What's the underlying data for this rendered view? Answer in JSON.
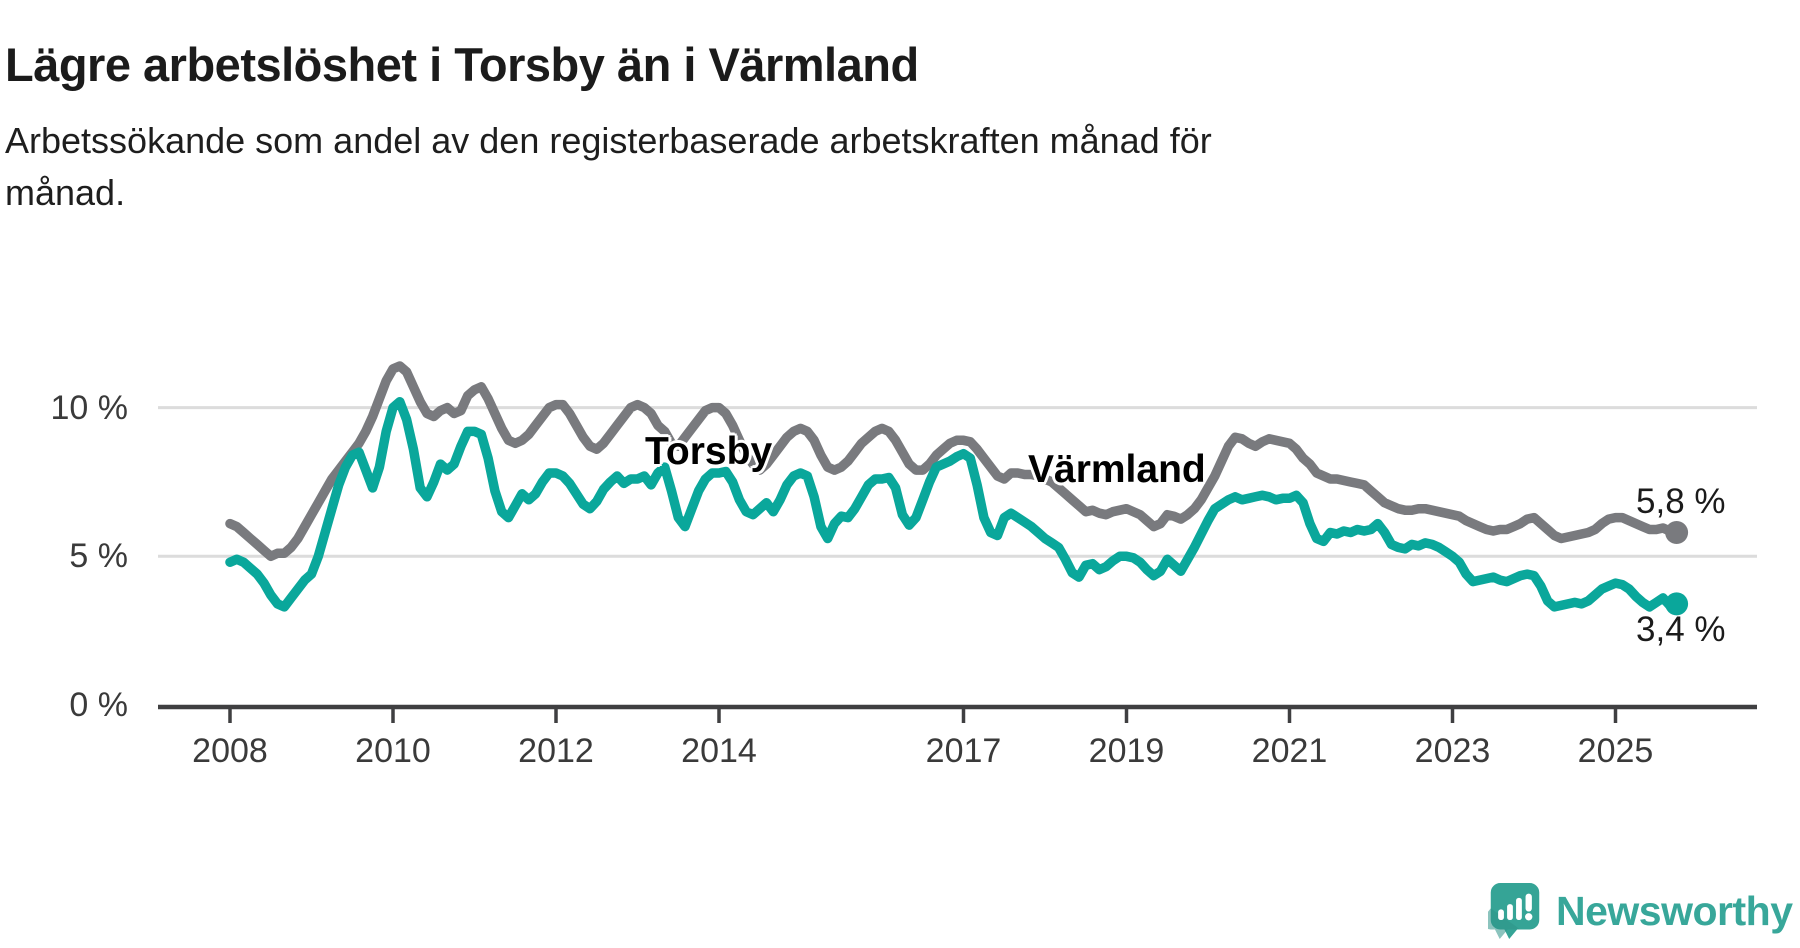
{
  "header": {
    "title": "Lägre arbetslöshet i Torsby än i Värmland",
    "subtitle_lines": [
      "Arbetssökande som andel av den registerbaserade arbetskraften månad för",
      "månad."
    ]
  },
  "colors": {
    "varmland_line": "#797a7e",
    "torsby_line": "#0aa79b",
    "gridline": "#dcdcdc",
    "axis": "#3f3f41",
    "tick_label": "#3a3a3a",
    "title_text": "#1b1b1b",
    "logo_teal": "#38a79a"
  },
  "chart_data": {
    "type": "line",
    "title": "Lägre arbetslöshet i Torsby än i Värmland",
    "subtitle": "Arbetssökande som andel av den registerbaserade arbetskraften månad för månad.",
    "unit": "percent",
    "frequency": "monthly",
    "start_year": 2008,
    "start_month": 1,
    "end_label_note": "series end autumn 2025",
    "x_axis": {
      "ticks": [
        2008,
        2010,
        2012,
        2014,
        2017,
        2019,
        2021,
        2023,
        2025
      ]
    },
    "y_axis": {
      "ticks": [
        {
          "value": 10,
          "label": "10 %"
        },
        {
          "value": 5,
          "label": "5 %"
        },
        {
          "value": 0,
          "label": "0 %"
        }
      ],
      "range": [
        0,
        12
      ],
      "gridlines_at": [
        5,
        10
      ]
    },
    "legend_position": "inline-labels-on-lines",
    "series": [
      {
        "name": "Värmland",
        "color": "#797a7e",
        "last_label": "5,8 %",
        "last_value": 5.8,
        "values": [
          6.1,
          6.0,
          5.8,
          5.6,
          5.4,
          5.2,
          5.0,
          5.1,
          5.1,
          5.3,
          5.6,
          6.0,
          6.4,
          6.8,
          7.2,
          7.6,
          7.9,
          8.2,
          8.5,
          8.8,
          9.2,
          9.7,
          10.3,
          10.9,
          11.3,
          11.4,
          11.2,
          10.7,
          10.2,
          9.8,
          9.7,
          9.9,
          10.0,
          9.8,
          9.9,
          10.4,
          10.6,
          10.7,
          10.3,
          9.8,
          9.3,
          8.9,
          8.8,
          8.9,
          9.1,
          9.4,
          9.7,
          10.0,
          10.1,
          10.1,
          9.8,
          9.4,
          9.0,
          8.7,
          8.6,
          8.8,
          9.1,
          9.4,
          9.7,
          10.0,
          10.1,
          10.0,
          9.8,
          9.4,
          9.2,
          8.8,
          8.7,
          9.0,
          9.3,
          9.6,
          9.9,
          10.0,
          10.0,
          9.8,
          9.4,
          8.9,
          8.4,
          8.1,
          7.9,
          8.1,
          8.4,
          8.7,
          9.0,
          9.2,
          9.3,
          9.2,
          8.9,
          8.4,
          8.0,
          7.9,
          8.0,
          8.2,
          8.5,
          8.8,
          9.0,
          9.2,
          9.3,
          9.2,
          8.9,
          8.5,
          8.1,
          7.9,
          7.9,
          8.1,
          8.4,
          8.6,
          8.8,
          8.9,
          8.9,
          8.85,
          8.6,
          8.3,
          8.0,
          7.7,
          7.6,
          7.8,
          7.8,
          7.75,
          7.75,
          7.7,
          7.6,
          7.5,
          7.3,
          7.1,
          6.9,
          6.7,
          6.5,
          6.55,
          6.45,
          6.4,
          6.5,
          6.55,
          6.6,
          6.5,
          6.4,
          6.2,
          6.0,
          6.1,
          6.4,
          6.35,
          6.25,
          6.4,
          6.6,
          6.9,
          7.3,
          7.7,
          8.2,
          8.7,
          9.0,
          8.95,
          8.8,
          8.7,
          8.85,
          8.95,
          8.9,
          8.85,
          8.8,
          8.6,
          8.3,
          8.1,
          7.8,
          7.7,
          7.6,
          7.6,
          7.55,
          7.5,
          7.45,
          7.4,
          7.2,
          7.0,
          6.8,
          6.7,
          6.6,
          6.55,
          6.55,
          6.6,
          6.6,
          6.55,
          6.5,
          6.45,
          6.4,
          6.35,
          6.2,
          6.1,
          6.0,
          5.9,
          5.85,
          5.9,
          5.9,
          6.0,
          6.1,
          6.25,
          6.3,
          6.1,
          5.9,
          5.7,
          5.6,
          5.65,
          5.7,
          5.75,
          5.8,
          5.9,
          6.1,
          6.25,
          6.3,
          6.3,
          6.2,
          6.1,
          6.0,
          5.9,
          5.9,
          5.95,
          5.85,
          5.8
        ]
      },
      {
        "name": "Torsby",
        "color": "#0aa79b",
        "last_label": "3,4 %",
        "last_value": 3.4,
        "values": [
          4.8,
          4.9,
          4.8,
          4.6,
          4.4,
          4.1,
          3.7,
          3.4,
          3.3,
          3.6,
          3.9,
          4.2,
          4.4,
          5.0,
          5.8,
          6.6,
          7.4,
          8.0,
          8.4,
          8.5,
          7.9,
          7.3,
          8.0,
          9.2,
          10.0,
          10.2,
          9.6,
          8.6,
          7.3,
          7.0,
          7.5,
          8.1,
          7.9,
          8.1,
          8.7,
          9.2,
          9.2,
          9.1,
          8.3,
          7.2,
          6.5,
          6.3,
          6.7,
          7.1,
          6.9,
          7.1,
          7.5,
          7.8,
          7.8,
          7.7,
          7.45,
          7.1,
          6.75,
          6.6,
          6.85,
          7.25,
          7.5,
          7.7,
          7.45,
          7.6,
          7.6,
          7.7,
          7.4,
          7.8,
          8.0,
          7.2,
          6.3,
          6.0,
          6.6,
          7.2,
          7.6,
          7.8,
          7.8,
          7.85,
          7.5,
          6.9,
          6.5,
          6.4,
          6.6,
          6.8,
          6.5,
          6.9,
          7.4,
          7.7,
          7.8,
          7.7,
          7.0,
          6.0,
          5.6,
          6.1,
          6.35,
          6.3,
          6.6,
          7.0,
          7.4,
          7.6,
          7.6,
          7.65,
          7.3,
          6.4,
          6.05,
          6.3,
          6.9,
          7.5,
          8.0,
          8.1,
          8.2,
          8.35,
          8.45,
          8.3,
          7.4,
          6.3,
          5.8,
          5.7,
          6.3,
          6.45,
          6.3,
          6.15,
          6.0,
          5.8,
          5.6,
          5.45,
          5.3,
          4.9,
          4.45,
          4.3,
          4.7,
          4.75,
          4.55,
          4.65,
          4.85,
          5.0,
          5.0,
          4.95,
          4.8,
          4.55,
          4.35,
          4.5,
          4.9,
          4.7,
          4.5,
          4.9,
          5.3,
          5.75,
          6.2,
          6.6,
          6.75,
          6.9,
          7.0,
          6.9,
          6.95,
          7.0,
          7.05,
          7.0,
          6.9,
          6.95,
          6.95,
          7.05,
          6.8,
          6.1,
          5.6,
          5.5,
          5.8,
          5.75,
          5.85,
          5.8,
          5.9,
          5.85,
          5.9,
          6.1,
          5.8,
          5.4,
          5.3,
          5.25,
          5.4,
          5.35,
          5.45,
          5.4,
          5.3,
          5.15,
          5.0,
          4.8,
          4.4,
          4.15,
          4.2,
          4.25,
          4.3,
          4.2,
          4.15,
          4.25,
          4.35,
          4.4,
          4.35,
          4.0,
          3.5,
          3.3,
          3.35,
          3.4,
          3.45,
          3.4,
          3.5,
          3.7,
          3.9,
          4.0,
          4.1,
          4.05,
          3.9,
          3.65,
          3.45,
          3.3,
          3.45,
          3.6,
          3.35,
          3.4
        ]
      }
    ]
  },
  "logo": {
    "text": "Newsworthy",
    "icon": "newsworthy-bubble-bar-chart-icon"
  }
}
